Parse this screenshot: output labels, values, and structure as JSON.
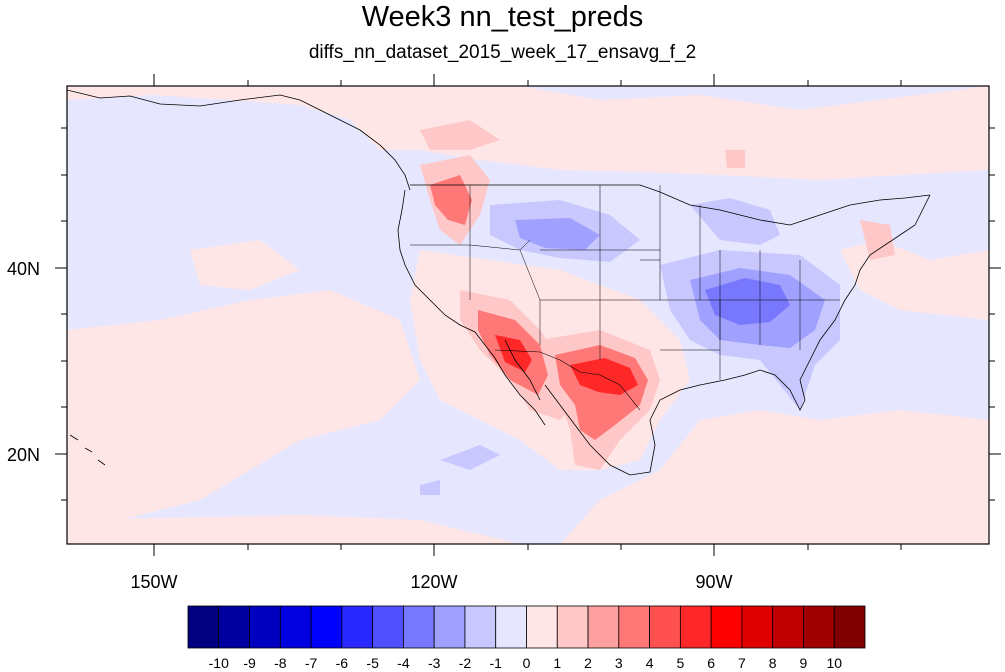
{
  "title": "Week3 nn_test_preds",
  "subtitle": "diffs_nn_dataset_2015_week_17_ensavg_f_2",
  "axes": {
    "lon_labels": [
      "150W",
      "120W",
      "90W"
    ],
    "lat_labels": [
      "40N",
      "20N"
    ]
  },
  "colorbar": {
    "labels": [
      "-10",
      "-9",
      "-8",
      "-7",
      "-6",
      "-5",
      "-4",
      "-3",
      "-2",
      "-1",
      "0",
      "1",
      "2",
      "3",
      "4",
      "5",
      "6",
      "7",
      "8",
      "9",
      "10"
    ],
    "colors": [
      "#000080",
      "#0000a0",
      "#0000c0",
      "#0000e0",
      "#0000ff",
      "#2828ff",
      "#5050ff",
      "#7878ff",
      "#a0a0ff",
      "#c8c8ff",
      "#e6e6ff",
      "#ffe6e6",
      "#ffc8c8",
      "#ffa0a0",
      "#ff7878",
      "#ff5050",
      "#ff2828",
      "#ff0000",
      "#e00000",
      "#c00000",
      "#a00000",
      "#800000"
    ]
  },
  "map_colors": {
    "ocean_base": "#e6e6ff",
    "warm_light": "#ffe6e6",
    "warm_mid": "#ffc8c8",
    "warm_strong": "#ff7878",
    "warm_peak": "#ff2828",
    "cool_light": "#c8c8ff",
    "cool_mid": "#a0a0ff",
    "cool_strong": "#7878ff"
  }
}
